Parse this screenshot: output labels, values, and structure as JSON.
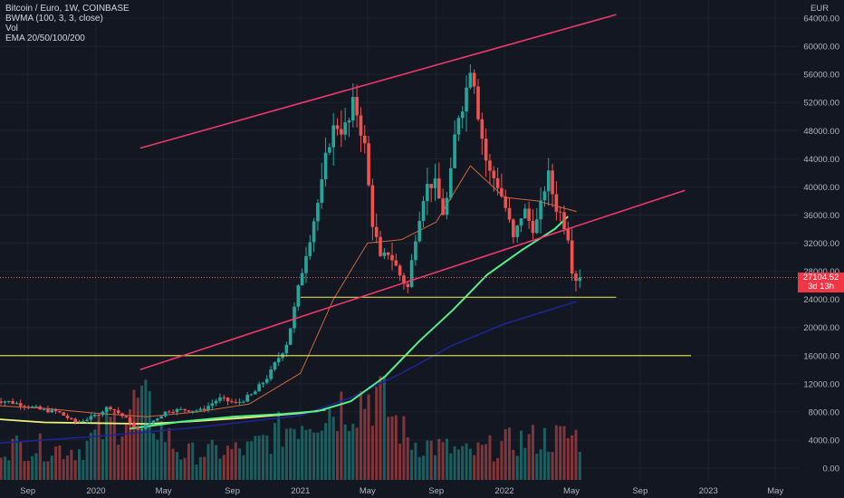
{
  "legend": {
    "symbol": "Bitcoin / Euro, 1W, COINBASE",
    "bwma": "BWMA (100, 3, 3, close)",
    "vol": "Vol",
    "ema": "EMA 20/50/100/200"
  },
  "currency": "EUR",
  "last_price": {
    "value": "27104.52",
    "countdown": "3d 13h"
  },
  "colors": {
    "background": "#131722",
    "up": "#26a69a",
    "down": "#ef5350",
    "channel": "#f0386b",
    "support": "#d8d452",
    "ema_green": "#54f08a",
    "ema_navy": "#1e2590",
    "ema_yellow": "#eef27a",
    "ema_orange": "#c96a3a",
    "last_price_tag": "#f23645"
  },
  "chart_data": {
    "type": "candlestick",
    "y_axis": {
      "labels": [
        "64000.00",
        "60000.00",
        "56000.00",
        "52000.00",
        "48000.00",
        "44000.00",
        "40000.00",
        "36000.00",
        "32000.00",
        "28000.00",
        "24000.00",
        "20000.00",
        "16000.00",
        "12000.00",
        "8000.00",
        "4000.00",
        "0.00"
      ],
      "ylim": [
        0,
        66000
      ]
    },
    "x_axis": {
      "labels": [
        {
          "label": "Sep",
          "date": "2019-09-01"
        },
        {
          "label": "2020",
          "date": "2020-01-01"
        },
        {
          "label": "May",
          "date": "2020-05-01"
        },
        {
          "label": "Sep",
          "date": "2020-09-01"
        },
        {
          "label": "2021",
          "date": "2021-01-01"
        },
        {
          "label": "May",
          "date": "2021-05-01"
        },
        {
          "label": "Sep",
          "date": "2021-09-01"
        },
        {
          "label": "2022",
          "date": "2022-01-01"
        },
        {
          "label": "May",
          "date": "2022-05-01"
        },
        {
          "label": "Sep",
          "date": "2022-09-01"
        },
        {
          "label": "2023",
          "date": "2023-01-01"
        },
        {
          "label": "May",
          "date": "2023-05-01"
        }
      ]
    },
    "trendlines": [
      {
        "name": "upper channel",
        "from": [
          "2020-03-20",
          45500
        ],
        "to": [
          "2022-07-20",
          64500
        ]
      },
      {
        "name": "lower channel",
        "from": [
          "2020-03-20",
          14000
        ],
        "to": [
          "2022-11-20",
          39500
        ]
      }
    ],
    "horizontal_lines": [
      {
        "name": "support",
        "value": 24300,
        "from": "2021-01-01",
        "to": "2022-07-20"
      },
      {
        "name": "support",
        "value": 16000,
        "from": "2019-07-01",
        "to": "2022-12-01"
      }
    ],
    "price_path": [
      [
        "2019-07-01",
        9800
      ],
      [
        "2019-08-01",
        9500
      ],
      [
        "2019-09-01",
        9000
      ],
      [
        "2019-10-01",
        8300
      ],
      [
        "2019-11-01",
        8000
      ],
      [
        "2019-12-01",
        6500
      ],
      [
        "2020-01-01",
        7200
      ],
      [
        "2020-02-01",
        8800
      ],
      [
        "2020-03-10",
        6500
      ],
      [
        "2020-03-20",
        5200
      ],
      [
        "2020-04-15",
        6500
      ],
      [
        "2020-05-15",
        8200
      ],
      [
        "2020-06-15",
        8300
      ],
      [
        "2020-07-15",
        8200
      ],
      [
        "2020-08-15",
        9900
      ],
      [
        "2020-09-15",
        9200
      ],
      [
        "2020-10-15",
        10500
      ],
      [
        "2020-11-15",
        13500
      ],
      [
        "2020-12-15",
        18000
      ],
      [
        "2021-01-01",
        24000
      ],
      [
        "2021-01-15",
        30000
      ],
      [
        "2021-02-15",
        40000
      ],
      [
        "2021-03-01",
        47000
      ],
      [
        "2021-03-15",
        49000
      ],
      [
        "2021-04-01",
        48000
      ],
      [
        "2021-04-15",
        52000
      ],
      [
        "2021-05-01",
        47000
      ],
      [
        "2021-05-15",
        36000
      ],
      [
        "2021-06-01",
        29000
      ],
      [
        "2021-06-15",
        31000
      ],
      [
        "2021-07-01",
        28000
      ],
      [
        "2021-07-20",
        25500
      ],
      [
        "2021-08-01",
        33000
      ],
      [
        "2021-08-15",
        39000
      ],
      [
        "2021-09-01",
        41000
      ],
      [
        "2021-09-20",
        36500
      ],
      [
        "2021-10-01",
        39000
      ],
      [
        "2021-10-15",
        50000
      ],
      [
        "2021-11-01",
        54000
      ],
      [
        "2021-11-10",
        59000
      ],
      [
        "2021-11-25",
        49000
      ],
      [
        "2021-12-10",
        42000
      ],
      [
        "2021-12-25",
        41000
      ],
      [
        "2022-01-10",
        37000
      ],
      [
        "2022-01-25",
        32000
      ],
      [
        "2022-02-10",
        37000
      ],
      [
        "2022-02-25",
        34500
      ],
      [
        "2022-03-10",
        35000
      ],
      [
        "2022-03-25",
        42000
      ],
      [
        "2022-04-10",
        37500
      ],
      [
        "2022-04-25",
        35000
      ],
      [
        "2022-05-01",
        34000
      ],
      [
        "2022-05-10",
        28000
      ],
      [
        "2022-05-16",
        27104.52
      ]
    ],
    "ema_green": [
      [
        "2020-03-01",
        5600
      ],
      [
        "2020-06-01",
        6600
      ],
      [
        "2020-09-01",
        7300
      ],
      [
        "2020-12-01",
        7700
      ],
      [
        "2021-02-01",
        8100
      ],
      [
        "2021-04-01",
        9500
      ],
      [
        "2021-06-01",
        13000
      ],
      [
        "2021-08-01",
        18000
      ],
      [
        "2021-10-01",
        22500
      ],
      [
        "2021-12-01",
        27500
      ],
      [
        "2022-02-01",
        31000
      ],
      [
        "2022-04-01",
        34000
      ],
      [
        "2022-04-25",
        35800
      ]
    ],
    "ema_navy": [
      [
        "2019-07-01",
        3500
      ],
      [
        "2020-01-01",
        4500
      ],
      [
        "2020-07-01",
        5800
      ],
      [
        "2021-01-01",
        7500
      ],
      [
        "2021-04-01",
        10000
      ],
      [
        "2021-07-01",
        13500
      ],
      [
        "2021-10-01",
        17500
      ],
      [
        "2022-01-01",
        20500
      ],
      [
        "2022-05-10",
        23700
      ]
    ],
    "ema_yellow": [
      [
        "2019-07-01",
        7000
      ],
      [
        "2019-10-01",
        6500
      ],
      [
        "2020-01-01",
        6400
      ],
      [
        "2020-04-01",
        6300
      ],
      [
        "2020-07-01",
        6700
      ],
      [
        "2020-10-01",
        7200
      ],
      [
        "2021-01-01",
        7800
      ],
      [
        "2021-02-15",
        8300
      ]
    ],
    "ema_orange": [
      [
        "2019-07-01",
        8900
      ],
      [
        "2019-10-01",
        8500
      ],
      [
        "2020-01-01",
        7800
      ],
      [
        "2020-04-01",
        7300
      ],
      [
        "2020-07-01",
        8000
      ],
      [
        "2020-10-01",
        9100
      ],
      [
        "2021-01-01",
        13500
      ],
      [
        "2021-03-01",
        24000
      ],
      [
        "2021-05-01",
        32000
      ],
      [
        "2021-07-01",
        32500
      ],
      [
        "2021-09-01",
        35000
      ],
      [
        "2021-11-01",
        43000
      ],
      [
        "2022-01-01",
        38500
      ],
      [
        "2022-03-01",
        38000
      ],
      [
        "2022-05-10",
        36500
      ]
    ],
    "volume_profile": [
      [
        "2019-07-01",
        0.4
      ],
      [
        "2019-12-01",
        0.35
      ],
      [
        "2020-03-20",
        0.9
      ],
      [
        "2020-06-01",
        0.3
      ],
      [
        "2020-10-01",
        0.35
      ],
      [
        "2021-01-15",
        0.75
      ],
      [
        "2021-05-15",
        1.0
      ],
      [
        "2021-07-15",
        0.45
      ],
      [
        "2021-11-01",
        0.3
      ],
      [
        "2022-01-25",
        0.45
      ],
      [
        "2022-05-10",
        0.5
      ]
    ]
  }
}
